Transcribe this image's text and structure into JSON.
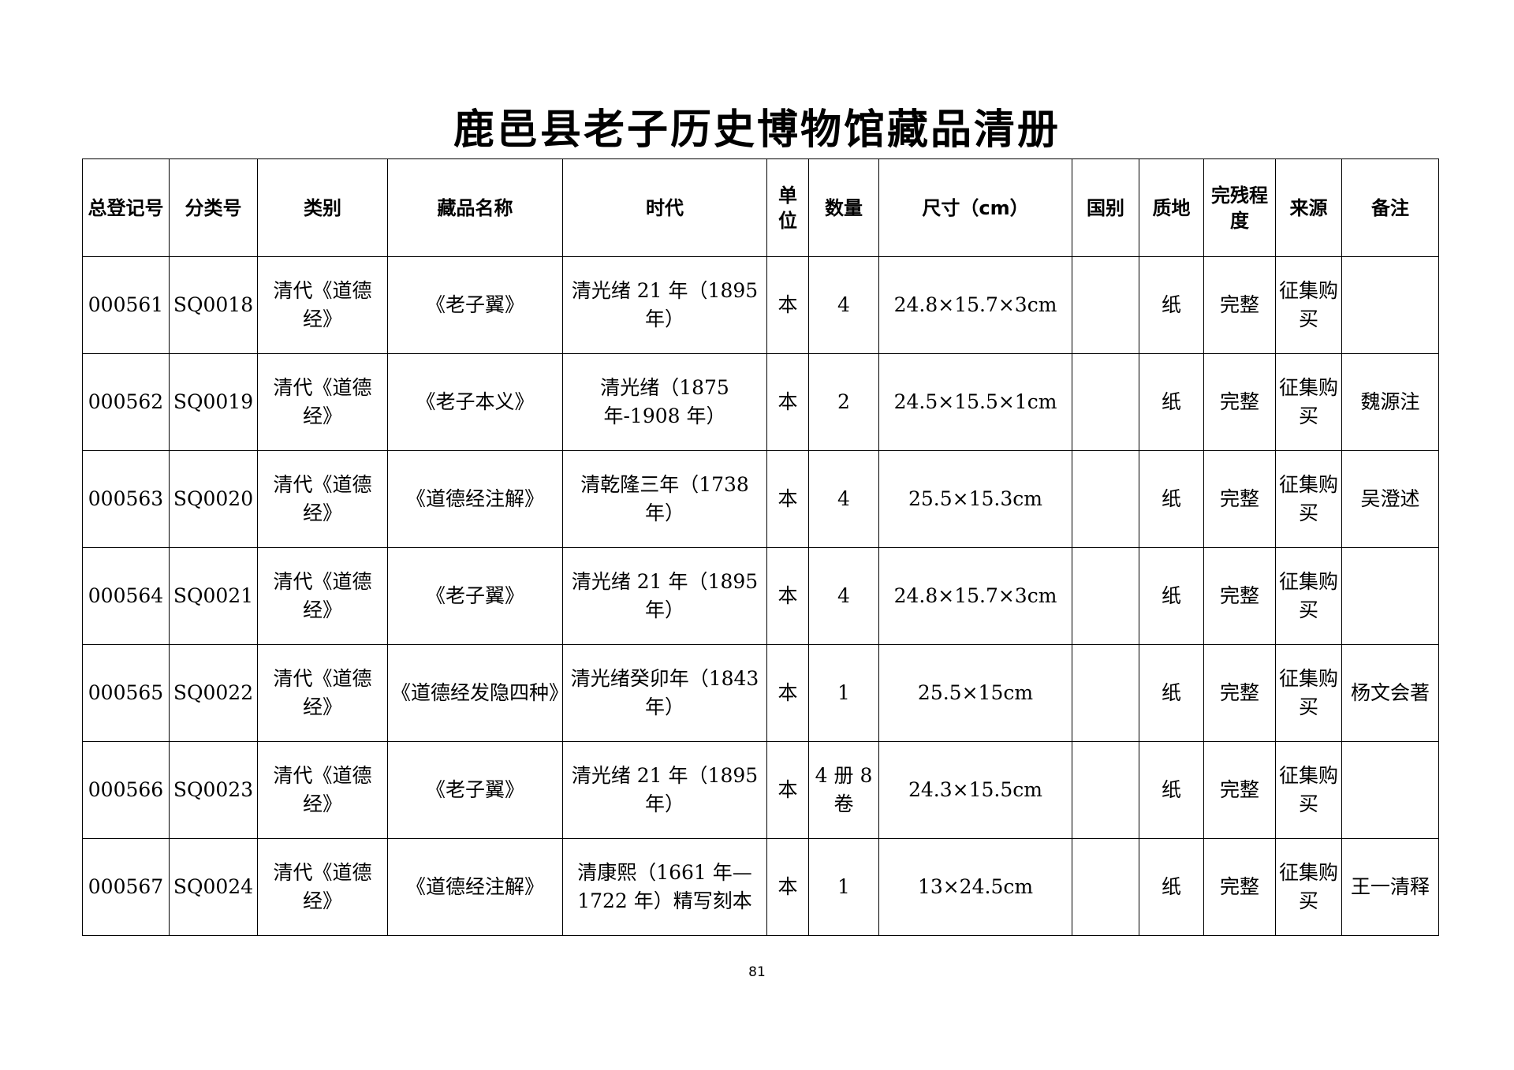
{
  "title": "鹿邑县老子历史博物馆藏品清册",
  "columns": [
    "总登记号",
    "分类号",
    "类别",
    "藏品名称",
    "时代",
    "单位",
    "数量",
    "尺寸（cm）",
    "国别",
    "质地",
    "完残程度",
    "来源",
    "备注"
  ],
  "rows": [
    [
      "000561",
      "SQ0018",
      "清代《道德经》",
      "《老子翼》",
      "清光绪 21 年（1895 年）",
      "本",
      "4",
      "24.8×15.7×3cm",
      "",
      "纸",
      "完整",
      "征集购买",
      ""
    ],
    [
      "000562",
      "SQ0019",
      "清代《道德经》",
      "《老子本义》",
      "清光绪（1875 年-1908 年）",
      "本",
      "2",
      "24.5×15.5×1cm",
      "",
      "纸",
      "完整",
      "征集购买",
      "魏源注"
    ],
    [
      "000563",
      "SQ0020",
      "清代《道德经》",
      "《道德经注解》",
      "清乾隆三年（1738 年）",
      "本",
      "4",
      "25.5×15.3cm",
      "",
      "纸",
      "完整",
      "征集购买",
      "吴澄述"
    ],
    [
      "000564",
      "SQ0021",
      "清代《道德经》",
      "《老子翼》",
      "清光绪 21 年（1895 年）",
      "本",
      "4",
      "24.8×15.7×3cm",
      "",
      "纸",
      "完整",
      "征集购买",
      ""
    ],
    [
      "000565",
      "SQ0022",
      "清代《道德经》",
      "《道德经发隐四种》",
      "清光绪癸卯年（1843 年）",
      "本",
      "1",
      "25.5×15cm",
      "",
      "纸",
      "完整",
      "征集购买",
      "杨文会著"
    ],
    [
      "000566",
      "SQ0023",
      "清代《道德经》",
      "《老子翼》",
      "清光绪 21 年（1895 年）",
      "本",
      "4 册 8 卷",
      "24.3×15.5cm",
      "",
      "纸",
      "完整",
      "征集购买",
      ""
    ],
    [
      "000567",
      "SQ0024",
      "清代《道德经》",
      "《道德经注解》",
      "清康熙（1661 年—1722 年）精写刻本",
      "本",
      "1",
      "13×24.5cm",
      "",
      "纸",
      "完整",
      "征集购买",
      "王一清释"
    ]
  ],
  "page_number": "81"
}
